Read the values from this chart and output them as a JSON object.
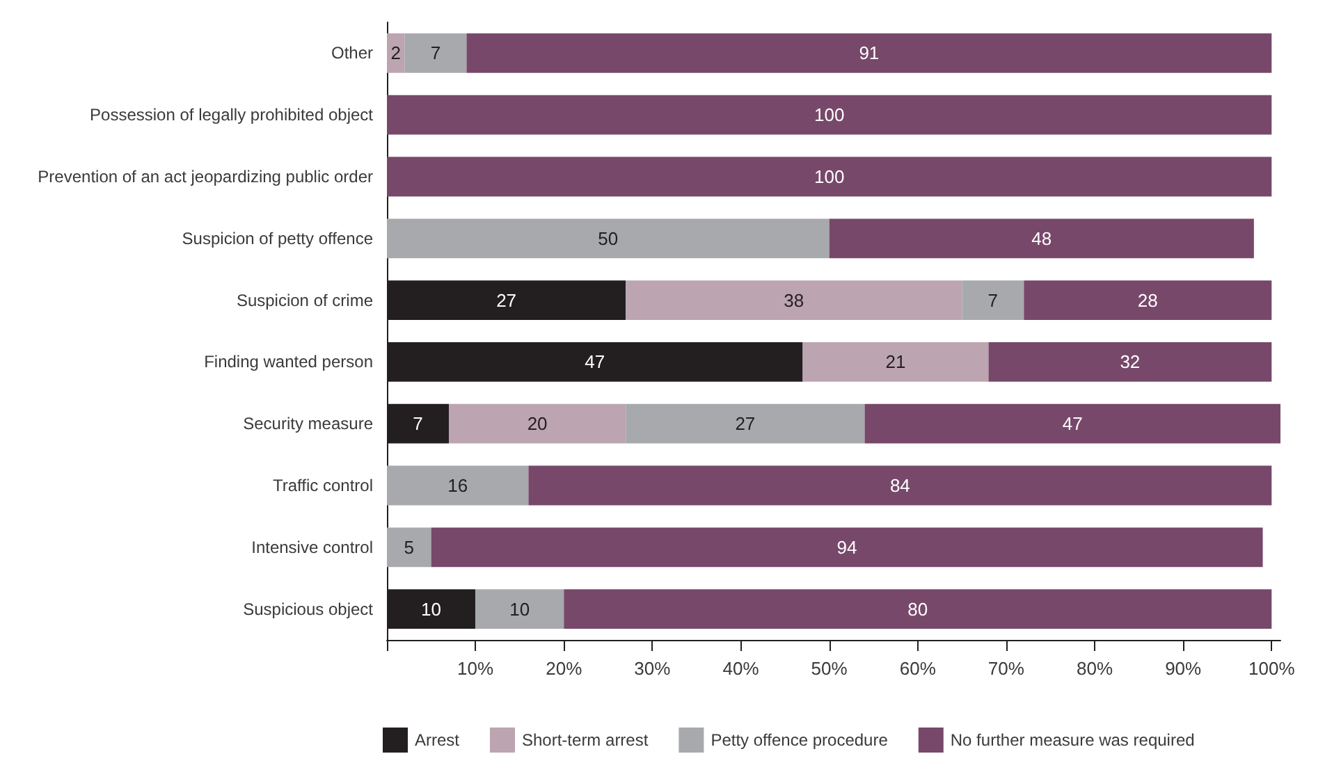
{
  "chart_data": {
    "type": "bar",
    "orientation": "horizontal",
    "stacked": true,
    "data_labels": true,
    "legend": "bottom",
    "grid": false,
    "categories": [
      "Other",
      "Possession of legally prohibited object",
      "Prevention of an act jeopardizing public order",
      "Suspicion of petty offence",
      "Suspicion of crime",
      "Finding wanted person",
      "Security measure",
      "Traffic control",
      "Intensive control",
      "Suspicious object"
    ],
    "series": [
      {
        "name": "Arrest",
        "color": "#231f20",
        "values": [
          null,
          null,
          null,
          null,
          27,
          47,
          7,
          null,
          null,
          10
        ]
      },
      {
        "name": "Short-term arrest",
        "color": "#bda4b1",
        "values": [
          2,
          null,
          null,
          null,
          38,
          21,
          20,
          null,
          null,
          null
        ]
      },
      {
        "name": "Petty offence procedure",
        "color": "#a7a9ac",
        "values": [
          7,
          null,
          null,
          50,
          7,
          null,
          27,
          16,
          5,
          10
        ]
      },
      {
        "name": "No further measure was required",
        "color": "#77486a",
        "values": [
          91,
          100,
          100,
          48,
          28,
          32,
          47,
          84,
          94,
          80
        ]
      }
    ],
    "xlim": [
      0,
      101
    ],
    "xticks": [
      {
        "value": 0,
        "label": null
      },
      {
        "value": 10,
        "label": "10%"
      },
      {
        "value": 20,
        "label": "20%"
      },
      {
        "value": 30,
        "label": "30%"
      },
      {
        "value": 40,
        "label": "40%"
      },
      {
        "value": 50,
        "label": "50%"
      },
      {
        "value": 60,
        "label": "60%"
      },
      {
        "value": 70,
        "label": "70%"
      },
      {
        "value": 80,
        "label": "80%"
      },
      {
        "value": 90,
        "label": "90%"
      },
      {
        "value": 100,
        "label": "100%"
      }
    ]
  }
}
